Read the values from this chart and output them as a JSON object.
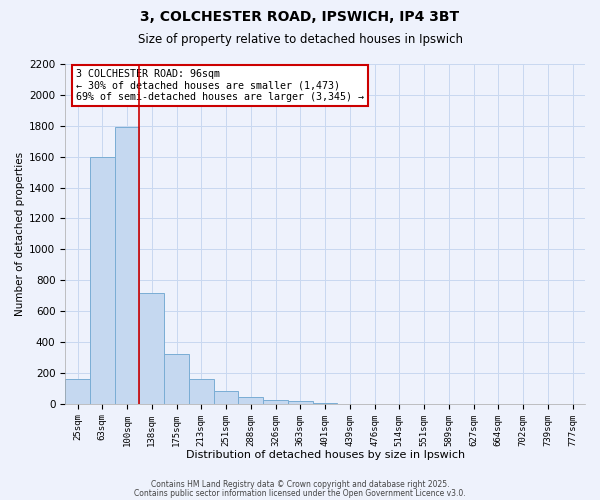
{
  "title": "3, COLCHESTER ROAD, IPSWICH, IP4 3BT",
  "subtitle": "Size of property relative to detached houses in Ipswich",
  "xlabel": "Distribution of detached houses by size in Ipswich",
  "ylabel": "Number of detached properties",
  "bar_color": "#c5d8f0",
  "bar_edge_color": "#7aadd4",
  "background_color": "#eef2fc",
  "grid_color": "#c8d8f0",
  "categories": [
    "25sqm",
    "63sqm",
    "100sqm",
    "138sqm",
    "175sqm",
    "213sqm",
    "251sqm",
    "288sqm",
    "326sqm",
    "363sqm",
    "401sqm",
    "439sqm",
    "476sqm",
    "514sqm",
    "551sqm",
    "589sqm",
    "627sqm",
    "664sqm",
    "702sqm",
    "739sqm",
    "777sqm"
  ],
  "values": [
    160,
    1600,
    1790,
    720,
    325,
    160,
    85,
    45,
    25,
    18,
    5,
    0,
    0,
    0,
    0,
    0,
    0,
    0,
    0,
    0,
    0
  ],
  "ylim": [
    0,
    2200
  ],
  "yticks": [
    0,
    200,
    400,
    600,
    800,
    1000,
    1200,
    1400,
    1600,
    1800,
    2000,
    2200
  ],
  "vline_color": "#cc0000",
  "annotation_title": "3 COLCHESTER ROAD: 96sqm",
  "annotation_line1": "← 30% of detached houses are smaller (1,473)",
  "annotation_line2": "69% of semi-detached houses are larger (3,345) →",
  "annotation_box_color": "#ffffff",
  "annotation_box_edge": "#cc0000",
  "footnote1": "Contains HM Land Registry data © Crown copyright and database right 2025.",
  "footnote2": "Contains public sector information licensed under the Open Government Licence v3.0."
}
